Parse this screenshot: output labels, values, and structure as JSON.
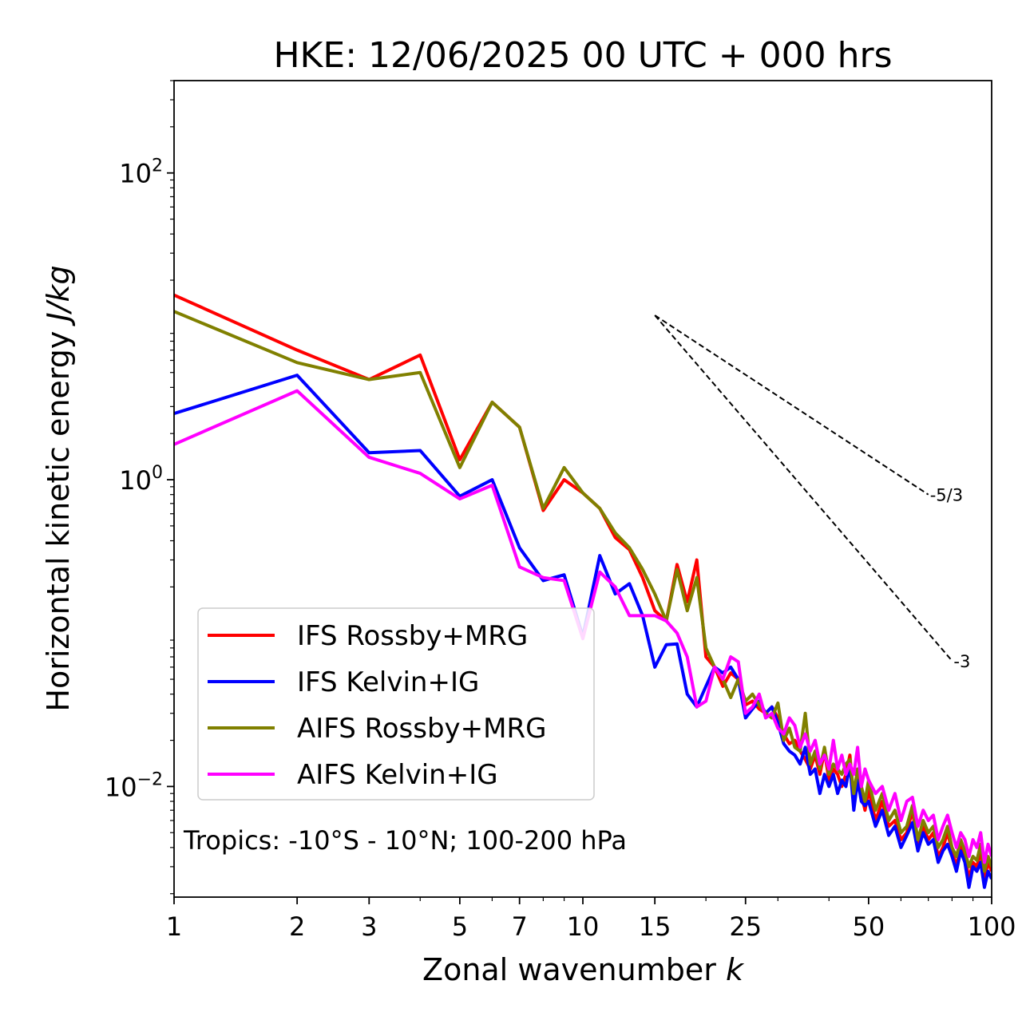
{
  "chart_data": {
    "type": "line",
    "title": "HKE: 12/06/2025 00 UTC + 000 hrs",
    "xlabel": "Zonal wavenumber k",
    "xlabel_text": "Zonal wavenumber ",
    "xlabel_var": "k",
    "ylabel": "Horizontal kinetic energy J/kg",
    "ylabel_text": "Horizontal kinetic energy ",
    "ylabel_var": "J/kg",
    "xscale": "log",
    "yscale": "log",
    "xlim": [
      1,
      100
    ],
    "ylim": [
      0.0019,
      400
    ],
    "xticks": [
      1,
      2,
      3,
      5,
      7,
      10,
      15,
      25,
      50,
      100
    ],
    "xtick_labels": [
      "1",
      "2",
      "3",
      "5",
      "7",
      "10",
      "15",
      "25",
      "50",
      "100"
    ],
    "yticks": [
      0.01,
      1,
      100
    ],
    "ytick_labels": [
      {
        "base": "10",
        "exp": "−2"
      },
      {
        "base": "10",
        "exp": "0"
      },
      {
        "base": "10",
        "exp": "2"
      }
    ],
    "annotation": "Tropics: -10°S - 10°N; 100-200 hPa",
    "legend_position": "lower-left",
    "grid": false,
    "reference_lines": [
      {
        "label": "-5/3",
        "x": [
          15,
          70
        ],
        "y": [
          11.8,
          0.8
        ]
      },
      {
        "label": "-3",
        "x": [
          15,
          80
        ],
        "y": [
          11.8,
          0.066
        ]
      }
    ],
    "series": [
      {
        "name": "IFS Rossby+MRG",
        "color": "#ff0000",
        "x": [
          1,
          2,
          3,
          4,
          5,
          6,
          7,
          8,
          9,
          10,
          11,
          12,
          13,
          14,
          15,
          16,
          17,
          18,
          19,
          20,
          21,
          22,
          23,
          24,
          25,
          26,
          27,
          28,
          29,
          30,
          31,
          32,
          33,
          34,
          35,
          36,
          37,
          38,
          39,
          40,
          41,
          42,
          43,
          44,
          45,
          46,
          47,
          48,
          49,
          50,
          52,
          54,
          56,
          58,
          60,
          62,
          64,
          66,
          68,
          70,
          72,
          74,
          76,
          78,
          80,
          82,
          84,
          86,
          88,
          90,
          92,
          94,
          96,
          98,
          100
        ],
        "y": [
          16,
          7.0,
          4.5,
          6.5,
          1.35,
          3.2,
          2.2,
          0.63,
          1.0,
          0.82,
          0.65,
          0.42,
          0.35,
          0.23,
          0.14,
          0.12,
          0.28,
          0.16,
          0.3,
          0.07,
          0.06,
          0.045,
          0.055,
          0.05,
          0.034,
          0.036,
          0.032,
          0.03,
          0.033,
          0.028,
          0.022,
          0.019,
          0.02,
          0.017,
          0.015,
          0.013,
          0.016,
          0.012,
          0.017,
          0.011,
          0.013,
          0.012,
          0.01,
          0.012,
          0.016,
          0.008,
          0.012,
          0.009,
          0.007,
          0.0095,
          0.006,
          0.008,
          0.0055,
          0.006,
          0.0045,
          0.005,
          0.007,
          0.004,
          0.0055,
          0.0045,
          0.005,
          0.0035,
          0.004,
          0.005,
          0.0038,
          0.003,
          0.0042,
          0.0035,
          0.0025,
          0.0032,
          0.003,
          0.0038,
          0.0025,
          0.0032,
          0.0028
        ]
      },
      {
        "name": "IFS Kelvin+IG",
        "color": "#0000ff",
        "x": [
          1,
          2,
          3,
          4,
          5,
          6,
          7,
          8,
          9,
          10,
          11,
          12,
          13,
          14,
          15,
          16,
          17,
          18,
          19,
          20,
          21,
          22,
          23,
          24,
          25,
          26,
          27,
          28,
          29,
          30,
          31,
          32,
          33,
          34,
          35,
          36,
          37,
          38,
          39,
          40,
          41,
          42,
          43,
          44,
          45,
          46,
          47,
          48,
          49,
          50,
          52,
          54,
          56,
          58,
          60,
          62,
          64,
          66,
          68,
          70,
          72,
          74,
          76,
          78,
          80,
          82,
          84,
          86,
          88,
          90,
          92,
          94,
          96,
          98,
          100
        ],
        "y": [
          2.7,
          4.8,
          1.5,
          1.55,
          0.78,
          1.0,
          0.36,
          0.22,
          0.24,
          0.095,
          0.32,
          0.18,
          0.21,
          0.13,
          0.06,
          0.084,
          0.085,
          0.04,
          0.033,
          0.045,
          0.06,
          0.055,
          0.06,
          0.05,
          0.028,
          0.032,
          0.036,
          0.03,
          0.033,
          0.026,
          0.019,
          0.017,
          0.016,
          0.014,
          0.018,
          0.012,
          0.013,
          0.009,
          0.012,
          0.01,
          0.012,
          0.009,
          0.011,
          0.01,
          0.014,
          0.007,
          0.011,
          0.008,
          0.0075,
          0.008,
          0.0055,
          0.007,
          0.0048,
          0.0055,
          0.004,
          0.0048,
          0.0058,
          0.0038,
          0.005,
          0.0042,
          0.0045,
          0.0032,
          0.0038,
          0.0042,
          0.0035,
          0.0028,
          0.0038,
          0.0032,
          0.0022,
          0.003,
          0.0028,
          0.0032,
          0.0022,
          0.0028,
          0.0025
        ]
      },
      {
        "name": "AIFS Rossby+MRG",
        "color": "#808000",
        "x": [
          1,
          2,
          3,
          4,
          5,
          6,
          7,
          8,
          9,
          10,
          11,
          12,
          13,
          14,
          15,
          16,
          17,
          18,
          19,
          20,
          21,
          22,
          23,
          24,
          25,
          26,
          27,
          28,
          29,
          30,
          31,
          32,
          33,
          34,
          35,
          36,
          37,
          38,
          39,
          40,
          41,
          42,
          43,
          44,
          45,
          46,
          47,
          48,
          49,
          50,
          52,
          54,
          56,
          58,
          60,
          62,
          64,
          66,
          68,
          70,
          72,
          74,
          76,
          78,
          80,
          82,
          84,
          86,
          88,
          90,
          92,
          94,
          96,
          98,
          100
        ],
        "y": [
          12.5,
          5.8,
          4.5,
          5.0,
          1.2,
          3.2,
          2.2,
          0.65,
          1.2,
          0.82,
          0.65,
          0.45,
          0.36,
          0.26,
          0.18,
          0.12,
          0.26,
          0.14,
          0.23,
          0.08,
          0.06,
          0.05,
          0.038,
          0.05,
          0.036,
          0.04,
          0.034,
          0.03,
          0.028,
          0.035,
          0.02,
          0.024,
          0.018,
          0.017,
          0.03,
          0.014,
          0.017,
          0.013,
          0.018,
          0.012,
          0.014,
          0.013,
          0.012,
          0.014,
          0.015,
          0.009,
          0.013,
          0.01,
          0.008,
          0.011,
          0.007,
          0.009,
          0.006,
          0.007,
          0.005,
          0.0055,
          0.0075,
          0.0045,
          0.006,
          0.005,
          0.0055,
          0.004,
          0.0045,
          0.0055,
          0.004,
          0.0035,
          0.0045,
          0.0038,
          0.003,
          0.0035,
          0.0033,
          0.0042,
          0.0028,
          0.0035,
          0.003
        ]
      },
      {
        "name": "AIFS Kelvin+IG",
        "color": "#ff00ff",
        "x": [
          1,
          2,
          3,
          4,
          5,
          6,
          7,
          8,
          9,
          10,
          11,
          12,
          13,
          14,
          15,
          16,
          17,
          18,
          19,
          20,
          21,
          22,
          23,
          24,
          25,
          26,
          27,
          28,
          29,
          30,
          31,
          32,
          33,
          34,
          35,
          36,
          37,
          38,
          39,
          40,
          41,
          42,
          43,
          44,
          45,
          46,
          47,
          48,
          49,
          50,
          52,
          54,
          56,
          58,
          60,
          62,
          64,
          66,
          68,
          70,
          72,
          74,
          76,
          78,
          80,
          82,
          84,
          86,
          88,
          90,
          92,
          94,
          96,
          98,
          100
        ],
        "y": [
          1.7,
          3.8,
          1.4,
          1.1,
          0.75,
          0.92,
          0.27,
          0.23,
          0.22,
          0.092,
          0.25,
          0.2,
          0.13,
          0.13,
          0.13,
          0.12,
          0.1,
          0.07,
          0.033,
          0.036,
          0.06,
          0.05,
          0.07,
          0.065,
          0.03,
          0.033,
          0.04,
          0.028,
          0.03,
          0.024,
          0.022,
          0.028,
          0.025,
          0.018,
          0.022,
          0.017,
          0.02,
          0.014,
          0.016,
          0.013,
          0.02,
          0.013,
          0.016,
          0.012,
          0.014,
          0.012,
          0.018,
          0.01,
          0.013,
          0.011,
          0.009,
          0.01,
          0.007,
          0.009,
          0.006,
          0.008,
          0.0085,
          0.0055,
          0.007,
          0.006,
          0.0065,
          0.0045,
          0.0055,
          0.0065,
          0.005,
          0.004,
          0.005,
          0.0045,
          0.0035,
          0.0045,
          0.004,
          0.005,
          0.0032,
          0.0042,
          0.0035
        ]
      }
    ]
  }
}
